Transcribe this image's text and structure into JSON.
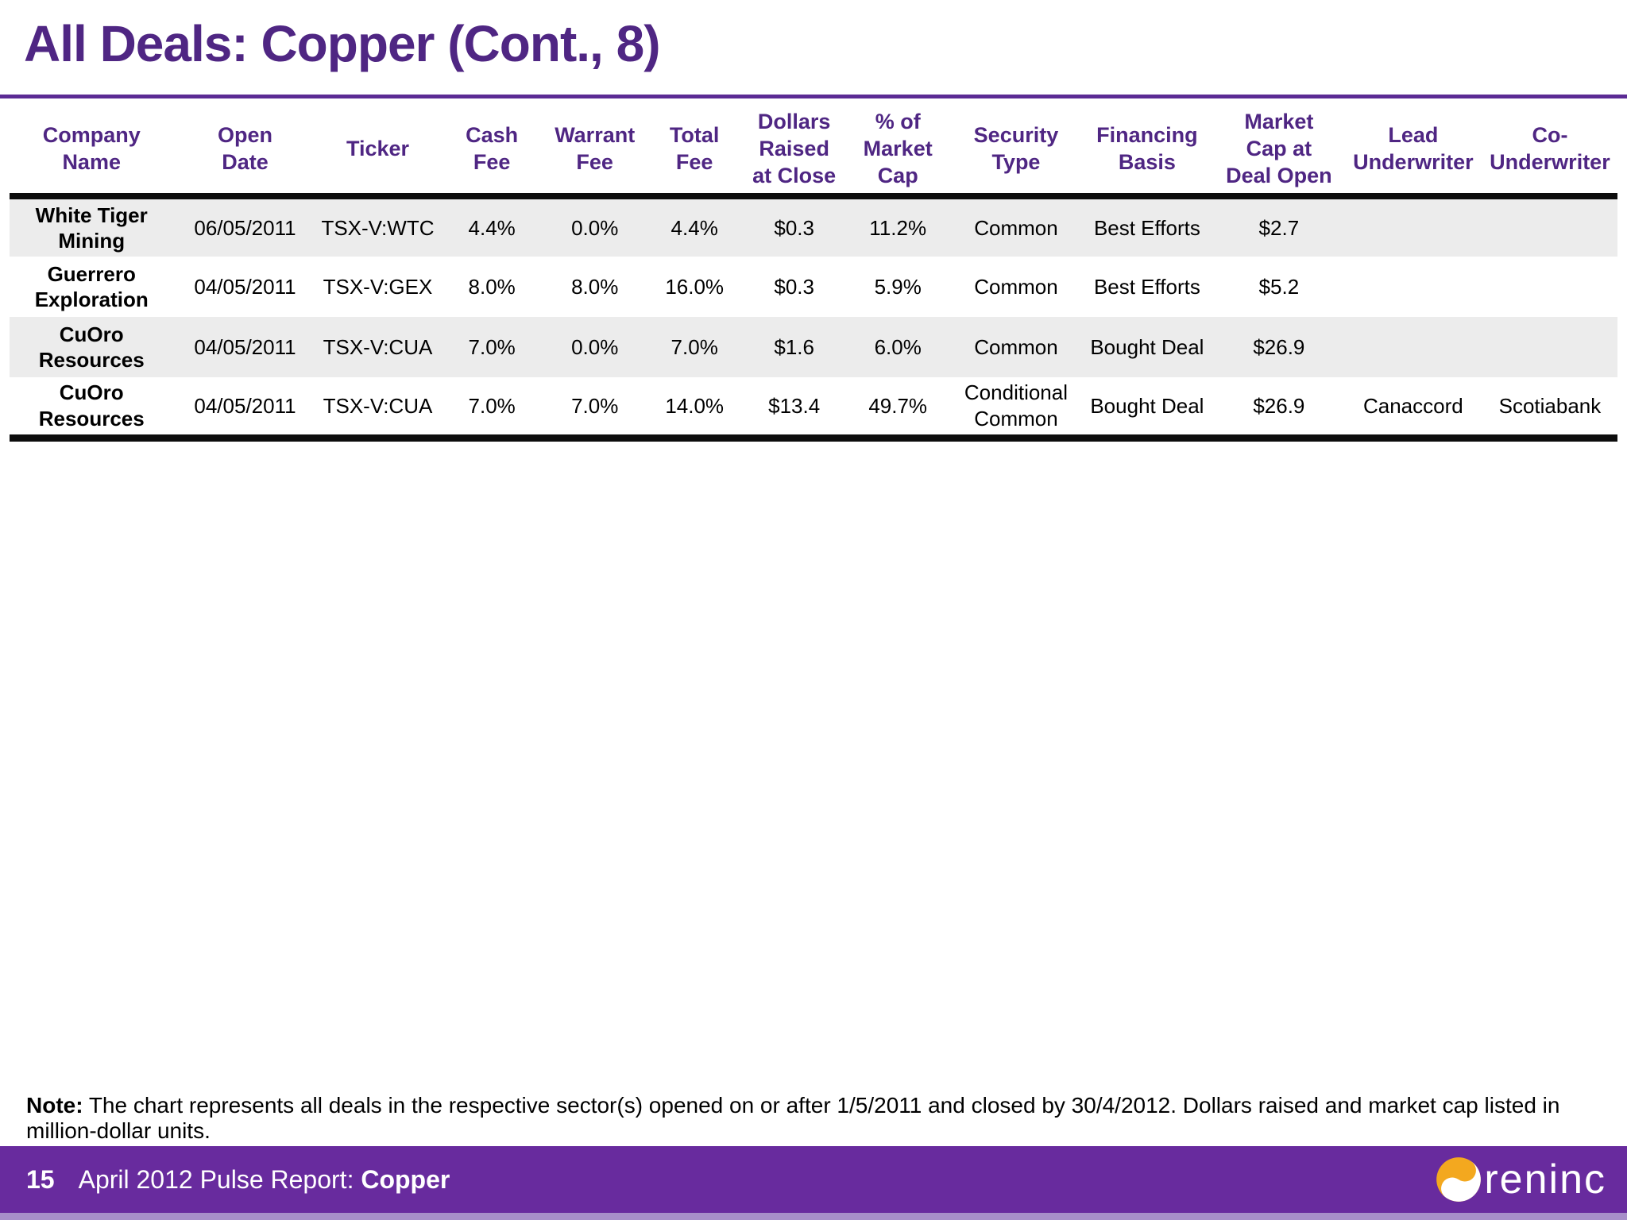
{
  "page": {
    "title": "All Deals: Copper (Cont., 8)"
  },
  "table": {
    "columns": [
      "Company\nName",
      "Open\nDate",
      "Ticker",
      "Cash\nFee",
      "Warrant\nFee",
      "Total\nFee",
      "Dollars\nRaised\nat Close",
      "% of\nMarket\nCap",
      "Security\nType",
      "Financing\nBasis",
      "Market\nCap at\nDeal Open",
      "Lead\nUnderwriter",
      "Co-\nUnderwriter"
    ],
    "rows": [
      [
        "White Tiger\nMining",
        "06/05/2011",
        "TSX-V:WTC",
        "4.4%",
        "0.0%",
        "4.4%",
        "$0.3",
        "11.2%",
        "Common",
        "Best Efforts",
        "$2.7",
        "",
        ""
      ],
      [
        "Guerrero\nExploration",
        "04/05/2011",
        "TSX-V:GEX",
        "8.0%",
        "8.0%",
        "16.0%",
        "$0.3",
        "5.9%",
        "Common",
        "Best Efforts",
        "$5.2",
        "",
        ""
      ],
      [
        "CuOro\nResources",
        "04/05/2011",
        "TSX-V:CUA",
        "7.0%",
        "0.0%",
        "7.0%",
        "$1.6",
        "6.0%",
        "Common",
        "Bought Deal",
        "$26.9",
        "",
        ""
      ],
      [
        "CuOro\nResources",
        "04/05/2011",
        "TSX-V:CUA",
        "7.0%",
        "7.0%",
        "14.0%",
        "$13.4",
        "49.7%",
        "Conditional\nCommon",
        "Bought Deal",
        "$26.9",
        "Canaccord",
        "Scotiabank"
      ]
    ]
  },
  "note": {
    "label": "Note:",
    "text": " The chart represents all deals in the respective sector(s) opened on or after 1/5/2011 and closed by 30/4/2012. Dollars raised and market cap listed in million-dollar units."
  },
  "footer": {
    "page_number": "15",
    "report_prefix": "April 2012 Pulse Report: ",
    "report_highlight": "Copper",
    "logo_text": "reninc",
    "logo_icon": "oreninc-swirl-icon"
  },
  "colors": {
    "title_purple": "#4F2683",
    "header_purple": "#4F2683",
    "rule_purple": "#5B2B94",
    "footer_purple": "#682B9E",
    "footer_strip": "#A78FC9",
    "row_stripe": "#ECECEC",
    "logo_orange": "#F3A81F"
  }
}
